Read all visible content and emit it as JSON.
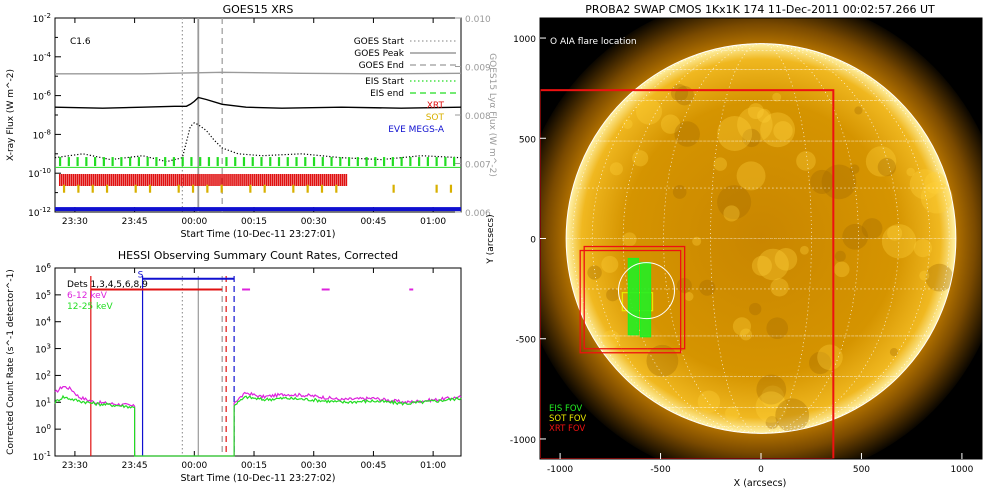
{
  "chart_data": [
    {
      "type": "line",
      "title": "GOES15 XRS",
      "xlabel": "Start Time (10-Dec-11 23:27:01)",
      "ylabel": "X-ray Flux (W m^-2)",
      "ylabel_right": "GOES15 Lyα Flux (W m^-2)",
      "x_range_min": [
        -2,
        100
      ],
      "x_ticks": [
        "23:30",
        "23:45",
        "00:00",
        "00:15",
        "00:30",
        "00:45",
        "01:00"
      ],
      "y_log_range_exp": [
        -12,
        -2
      ],
      "y_ticks": [
        "10^-2",
        "10^-4",
        "10^-6",
        "10^-8",
        "10^-10",
        "10^-12"
      ],
      "y2_range": [
        0.006,
        0.01
      ],
      "y2_ticks": [
        "0.010",
        "0.009",
        "0.008",
        "0.007",
        "0.006"
      ],
      "flare_class": "C1.6",
      "goes_start_min": 30,
      "goes_peak_min": 34,
      "goes_end_min": 40,
      "legend": [
        {
          "label": "GOES Start",
          "style": "dotted",
          "color": "#9a9a9a"
        },
        {
          "label": "GOES Peak",
          "style": "solid",
          "color": "#9a9a9a"
        },
        {
          "label": "GOES End",
          "style": "dashed",
          "color": "#9a9a9a"
        },
        {
          "label": "EIS Start",
          "style": "dotted",
          "color": "#22dd22"
        },
        {
          "label": "EIS end",
          "style": "dashed",
          "color": "#22dd22"
        },
        {
          "label": "XRT",
          "style": "text",
          "color": "#e01010"
        },
        {
          "label": "SOT",
          "style": "text",
          "color": "#d8b000"
        },
        {
          "label": "EVE MEGS-A",
          "style": "text",
          "color": "#1010d0"
        }
      ],
      "series": [
        {
          "name": "GOES 1-8 Å",
          "color": "#000000",
          "x": [
            -2,
            10,
            20,
            28,
            31,
            32,
            33,
            34,
            36,
            40,
            46,
            55,
            70,
            85,
            100
          ],
          "log_y": [
            -6.6,
            -6.65,
            -6.6,
            -6.55,
            -6.55,
            -6.45,
            -6.3,
            -6.1,
            -6.2,
            -6.45,
            -6.6,
            -6.65,
            -6.6,
            -6.65,
            -6.6
          ]
        },
        {
          "name": "GOES Lyα",
          "color": "#9a9a9a",
          "x": [
            -2,
            20,
            40,
            60,
            80,
            100
          ],
          "y": [
            0.00885,
            0.00885,
            0.00888,
            0.00886,
            0.00885,
            0.00886
          ]
        },
        {
          "name": "GOES 0.5-4 Å",
          "color": "#000000",
          "style": "dotted",
          "x": [
            -2,
            5,
            12,
            20,
            26,
            30,
            32,
            33,
            34,
            36,
            38,
            40,
            44,
            50,
            60,
            70,
            80,
            90,
            100
          ],
          "log_y": [
            -9.2,
            -9.0,
            -9.3,
            -9.1,
            -9.4,
            -9.2,
            -7.6,
            -7.4,
            -7.5,
            -7.8,
            -8.3,
            -8.7,
            -9.0,
            -9.1,
            -9.0,
            -9.2,
            -9.3,
            -9.1,
            -9.2
          ]
        }
      ],
      "instrument_bars": [
        {
          "name": "EIS",
          "color": "#22dd22",
          "log_y": -9.4,
          "from": -1,
          "to": 100,
          "spacing": 2.2
        },
        {
          "name": "XRT",
          "color": "#e01010",
          "log_y": -10.35,
          "from": -1,
          "to": 71,
          "spacing": 0.5
        },
        {
          "name": "SOT",
          "color": "#d8b000",
          "log_y": -10.8,
          "from": 0,
          "to": 100,
          "spacing": 3.6
        },
        {
          "name": "EVE MEGS-A",
          "color": "#1010d0",
          "log_y": -11.85,
          "from": -2,
          "to": 100
        }
      ],
      "eis_level_line_log_y": -9.7
    },
    {
      "type": "line",
      "title": "HESSI Observing Summary Count Rates, Corrected",
      "xlabel": "Start Time (10-Dec-11 23:27:02)",
      "ylabel": "Corrected Count Rate (s^-1 detector^-1)",
      "x_range_min": [
        -2,
        100
      ],
      "x_ticks": [
        "23:30",
        "23:45",
        "00:00",
        "00:15",
        "00:30",
        "00:45",
        "01:00"
      ],
      "y_log_range_exp": [
        -1,
        6
      ],
      "y_ticks": [
        "10^6",
        "10^5",
        "10^4",
        "10^3",
        "10^2",
        "10^1",
        "10^0",
        "10^-1"
      ],
      "legend": [
        {
          "label": "Dets 1,3,4,5,6,8,9",
          "color": "#000000"
        },
        {
          "label": "6-12 keV",
          "color": "#dd22dd"
        },
        {
          "label": "12-25 keV",
          "color": "#22dd22"
        }
      ],
      "series": [
        {
          "name": "6-12 keV",
          "color": "#dd22dd",
          "x": [
            -2,
            0,
            2,
            4,
            8,
            12,
            16,
            18,
            18,
            43,
            43,
            46,
            50,
            56,
            62,
            70,
            78,
            86,
            94,
            100
          ],
          "log_y": [
            1.35,
            1.6,
            1.5,
            1.2,
            1.0,
            0.95,
            0.9,
            0.85,
            -1,
            -1,
            1.0,
            1.35,
            1.2,
            1.3,
            1.25,
            1.1,
            1.15,
            1.0,
            1.1,
            1.2
          ]
        },
        {
          "name": "12-25 keV",
          "color": "#22dd22",
          "x": [
            -2,
            0,
            4,
            8,
            12,
            16,
            18,
            18,
            43,
            43,
            46,
            50,
            56,
            62,
            70,
            78,
            86,
            94,
            100
          ],
          "log_y": [
            1.0,
            1.2,
            1.05,
            0.95,
            0.9,
            0.85,
            0.8,
            -1,
            -1,
            0.9,
            1.2,
            1.1,
            1.15,
            1.1,
            1.0,
            1.05,
            0.95,
            1.05,
            1.15
          ]
        }
      ],
      "flag_marker": "S",
      "flags": [
        {
          "name": "attenuator",
          "color": "#e01010",
          "from_min": 7,
          "to_min": 40,
          "log_y": 5.2
        },
        {
          "name": "saa",
          "color": "#1010d0",
          "from_min": 20,
          "to_min": 43,
          "log_y": 5.6
        }
      ],
      "magenta_segments": [
        [
          45,
          47
        ],
        [
          65,
          67
        ],
        [
          87,
          88
        ]
      ],
      "vlines": [
        {
          "min": 7,
          "color": "#e01010",
          "style": "solid"
        },
        {
          "min": 20,
          "color": "#1010d0",
          "style": "solid"
        },
        {
          "min": 30,
          "color": "#9a9a9a",
          "style": "dotted"
        },
        {
          "min": 34,
          "color": "#9a9a9a",
          "style": "solid"
        },
        {
          "min": 40,
          "color": "#9a9a9a",
          "style": "dashed"
        },
        {
          "min": 41,
          "color": "#e01010",
          "style": "dashed"
        },
        {
          "min": 43,
          "color": "#1010d0",
          "style": "dashed"
        }
      ]
    },
    {
      "type": "image",
      "title": "PROBA2 SWAP CMOS 1Kx1K 174 11-Dec-2011 00:02:57.266 UT",
      "xlabel": "X (arcsecs)",
      "ylabel": "Y (arcsecs)",
      "x_range": [
        -1100,
        1100
      ],
      "y_range": [
        -1100,
        1100
      ],
      "x_ticks": [
        -1000,
        -500,
        0,
        500,
        1000
      ],
      "y_ticks": [
        1000,
        500,
        0,
        -500,
        -1000
      ],
      "solar_radius_arcsec": 970,
      "annotation": "O AIA flare location",
      "flare_location": [
        -570,
        -260
      ],
      "fov_legend": [
        {
          "label": "EIS FOV",
          "color": "#22ee22"
        },
        {
          "label": "SOT FOV",
          "color": "#e8e800"
        },
        {
          "label": "XRT FOV",
          "color": "#ee1111"
        }
      ],
      "fov_boxes": [
        {
          "name": "XRT large",
          "color": "#ee1111",
          "x": [
            -1100,
            360
          ],
          "y": [
            -1100,
            740
          ]
        },
        {
          "name": "XRT 1",
          "color": "#ee1111",
          "x": [
            -880,
            -380
          ],
          "y": [
            -550,
            -40
          ]
        },
        {
          "name": "XRT 2",
          "color": "#ee1111",
          "x": [
            -900,
            -400
          ],
          "y": [
            -570,
            -60
          ]
        },
        {
          "name": "SOT",
          "color": "#e8e800",
          "x": [
            -690,
            -540
          ],
          "y": [
            -360,
            -270
          ]
        },
        {
          "name": "EIS 1",
          "color": "#22ee22",
          "x": [
            -660,
            -610
          ],
          "y": [
            -480,
            -100
          ]
        },
        {
          "name": "EIS 2",
          "color": "#22ee22",
          "x": [
            -600,
            -550
          ],
          "y": [
            -490,
            -120
          ]
        }
      ]
    }
  ]
}
